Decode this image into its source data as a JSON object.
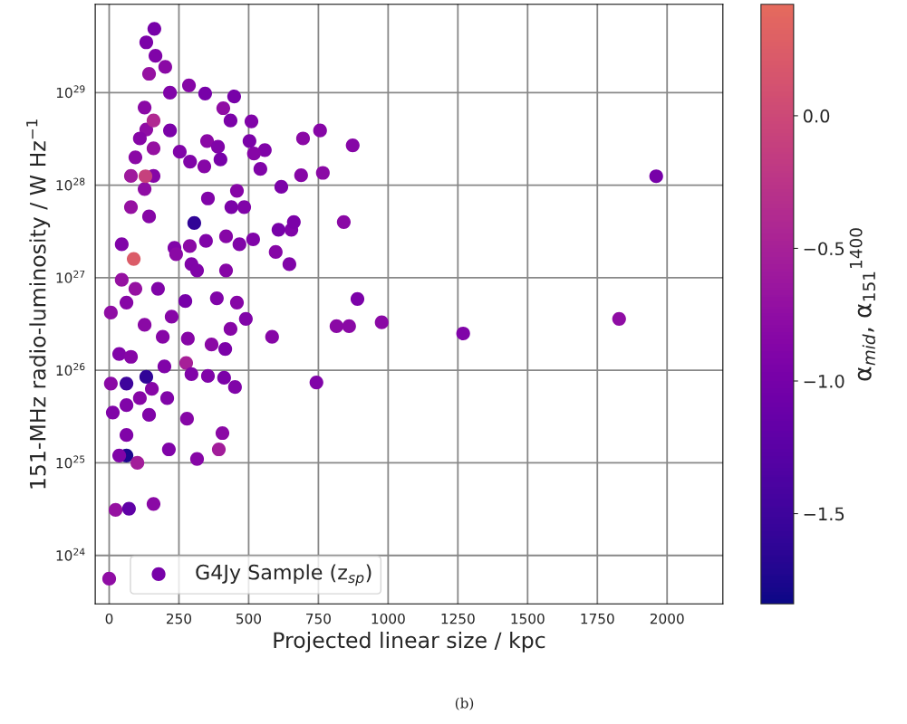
{
  "chart_data": {
    "type": "scatter",
    "xlabel": "Projected linear size / kpc",
    "ylabel": "151-MHz radio-luminosity / W Hz$^{−1}$",
    "clabel": "α$_{mid}$, α$_{151}$$^{1400}$",
    "annotations": [
      "(b)"
    ],
    "xlim": [
      -50,
      2200
    ],
    "xticks": [
      0,
      250,
      500,
      750,
      1000,
      1250,
      1500,
      1750,
      2000
    ],
    "ylim": [
      3e+23,
      9e+29
    ],
    "yticks": [
      {
        "value": 1e+24,
        "label": "10$^{24}$"
      },
      {
        "value": 1e+25,
        "label": "10$^{25}$"
      },
      {
        "value": 1e+26,
        "label": "10$^{26}$"
      },
      {
        "value": 1e+27,
        "label": "10$^{27}$"
      },
      {
        "value": 1e+28,
        "label": "10$^{28}$"
      },
      {
        "value": 1e+29,
        "label": "10$^{29}$"
      }
    ],
    "log": "y",
    "grid": true,
    "legend": "bottom left",
    "marker": "circle",
    "clim": [
      -1.84,
      0.42
    ],
    "cticks": [
      {
        "value": 0.0,
        "label": "0.0"
      },
      {
        "value": -0.5,
        "label": "−0.5"
      },
      {
        "value": -1.0,
        "label": "−1.0"
      },
      {
        "value": -1.5,
        "label": "−1.5"
      }
    ],
    "series": [
      {
        "name": "G4Jy Sample (z$_{sp}$)",
        "x": [
          1961,
          1828,
          1269,
          977,
          890,
          860,
          815,
          841,
          873,
          766,
          756,
          695,
          688,
          743,
          584,
          653,
          646,
          597,
          662,
          607,
          617,
          558,
          542,
          519,
          503,
          510,
          448,
          435,
          409,
          344,
          286,
          201,
          166,
          133,
          162,
          143,
          218,
          127,
          133,
          110,
          159,
          94,
          159,
          127,
          78,
          143,
          45,
          88,
          78,
          130,
          159,
          218,
          253,
          290,
          351,
          390,
          399,
          341,
          305,
          354,
          438,
          458,
          484,
          419,
          289,
          234,
          295,
          273,
          386,
          458,
          490,
          435,
          367,
          416,
          282,
          276,
          295,
          354,
          412,
          451,
          406,
          393,
          315,
          214,
          279,
          198,
          153,
          133,
          62,
          101,
          36,
          62,
          23,
          71,
          159,
          0,
          6,
          6,
          36,
          62,
          78,
          94,
          127,
          192,
          175,
          224,
          45,
          110,
          143,
          208,
          13,
          62,
          240,
          315,
          419,
          516,
          467,
          347,
          62
        ],
        "values": [
          1.25e+28,
          3.6e+26,
          2.5e+26,
          3.3e+26,
          5.9e+26,
          3e+26,
          3e+26,
          4e+27,
          2.7e+28,
          1.36e+28,
          3.9e+28,
          3.2e+28,
          1.28e+28,
          7.4e+25,
          2.3e+26,
          3.3e+27,
          1.4e+27,
          1.9e+27,
          4e+27,
          3.3e+27,
          9.6e+27,
          2.4e+28,
          1.5e+28,
          2.2e+28,
          3e+28,
          4.9e+28,
          9.1e+28,
          5e+28,
          6.8e+28,
          9.8e+28,
          1.2e+29,
          1.9e+29,
          2.5e+29,
          3.5e+29,
          4.9e+29,
          1.6e+29,
          1e+29,
          6.9e+28,
          4e+28,
          3.2e+28,
          2.5e+28,
          2e+28,
          1.26e+28,
          9.1e+27,
          5.8e+27,
          4.6e+27,
          2.3e+27,
          1.6e+27,
          1.26e+28,
          1.25e+28,
          5e+28,
          3.9e+28,
          2.3e+28,
          1.8e+28,
          3e+28,
          2.6e+28,
          1.9e+28,
          1.6e+28,
          3.9e+27,
          7.2e+27,
          5.8e+27,
          8.7e+27,
          5.8e+27,
          2.8e+27,
          2.2e+27,
          2.1e+27,
          1.4e+27,
          5.6e+26,
          6e+26,
          5.4e+26,
          3.6e+26,
          2.8e+26,
          1.9e+26,
          1.7e+26,
          2.2e+26,
          1.2e+26,
          9.1e+25,
          8.7e+25,
          8.3e+25,
          6.6e+25,
          2.1e+25,
          1.4e+25,
          1.1e+25,
          1.4e+25,
          3e+25,
          1.1e+26,
          6.3e+25,
          8.5e+25,
          1.2e+25,
          1e+25,
          1.2e+25,
          2e+25,
          3.1e+24,
          3.2e+24,
          3.6e+24,
          5.6e+23,
          7.2e+25,
          4.2e+26,
          1.5e+26,
          7.2e+25,
          1.4e+26,
          7.6e+26,
          3.1e+26,
          2.3e+26,
          7.6e+26,
          3.8e+26,
          9.5e+26,
          5e+25,
          3.3e+25,
          5e+25,
          3.5e+25,
          4.2e+25,
          1.8e+27,
          1.2e+27,
          1.2e+27,
          2.6e+27,
          2.3e+27,
          2.5e+27,
          5.4e+26
        ],
        "cvalues": [
          -1.0,
          -0.75,
          -0.9,
          -0.8,
          -0.95,
          -0.8,
          -0.8,
          -0.8,
          -0.85,
          -0.8,
          -0.85,
          -0.8,
          -0.85,
          -0.9,
          -0.85,
          -0.9,
          -0.9,
          -0.85,
          -0.95,
          -1.0,
          -0.95,
          -0.9,
          -0.9,
          -0.85,
          -0.95,
          -0.9,
          -1.0,
          -0.95,
          -0.75,
          -1.0,
          -0.85,
          -0.8,
          -0.9,
          -0.95,
          -1.0,
          -0.7,
          -0.9,
          -0.8,
          -0.75,
          -0.85,
          -0.7,
          -0.8,
          -0.85,
          -0.75,
          -0.7,
          -0.85,
          -0.9,
          0.25,
          -0.6,
          -0.1,
          -0.4,
          -0.95,
          -0.9,
          -0.9,
          -0.8,
          -0.9,
          -1.0,
          -0.85,
          -1.6,
          -0.9,
          -0.95,
          -0.85,
          -0.9,
          -0.85,
          -0.8,
          -0.9,
          -0.9,
          -1.0,
          -0.9,
          -0.85,
          -0.9,
          -0.85,
          -0.8,
          -0.95,
          -0.85,
          -0.5,
          -0.9,
          -0.9,
          -0.95,
          -0.9,
          -0.8,
          -0.55,
          -0.85,
          -0.9,
          -0.85,
          -0.9,
          -0.85,
          -1.6,
          -1.75,
          -0.55,
          -0.9,
          -0.9,
          -0.7,
          -1.2,
          -0.8,
          -0.75,
          -0.8,
          -0.75,
          -0.9,
          -1.5,
          -0.85,
          -0.7,
          -0.8,
          -0.85,
          -0.9,
          -0.85,
          -0.7,
          -0.85,
          -0.9,
          -0.9,
          -0.9,
          -0.9,
          -0.8,
          -0.9,
          -0.85,
          -0.9,
          -0.9,
          -0.9,
          -0.85
        ]
      }
    ]
  }
}
